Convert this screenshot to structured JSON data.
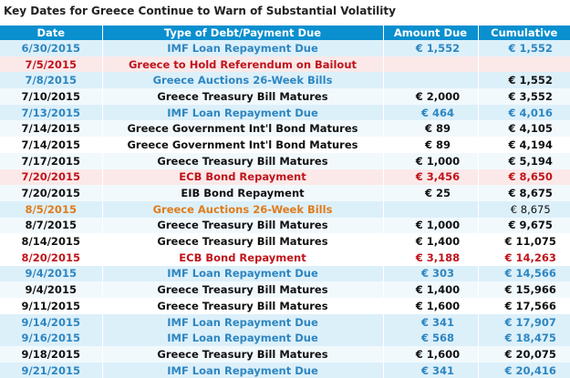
{
  "title": "Key Dates for Greece Continue to Warn of Substantial Volatility",
  "headers": {
    "date": "Date",
    "type": "Type of Debt/Payment Due",
    "amount": "Amount Due",
    "cumulative": "Cumulative"
  },
  "colors": {
    "header_bg": "#0a8fcf",
    "imf_blue": "#2e86c1",
    "ecb_red": "#c0141c",
    "auction_orange": "#e07b1a",
    "row_shade_blue": "#dcf0fa",
    "row_shade_red": "#fbe9e9"
  },
  "rows": [
    {
      "date": "6/30/2015",
      "type": "IMF Loan Repayment Due",
      "amount": "€ 1,552",
      "cumulative": "€ 1,552",
      "style": "imf"
    },
    {
      "date": "7/5/2015",
      "type": "Greece to Hold Referendum on Bailout",
      "amount": "",
      "cumulative": "",
      "style": "refer"
    },
    {
      "date": "7/8/2015",
      "type": "Greece Auctions 26-Week Bills",
      "amount": "",
      "cumulative": "€ 1,552",
      "style": "auction"
    },
    {
      "date": "7/10/2015",
      "type": "Greece Treasury Bill Matures",
      "amount": "€ 2,000",
      "cumulative": "€ 3,552",
      "style": "plain"
    },
    {
      "date": "7/13/2015",
      "type": "IMF Loan Repayment Due",
      "amount": "€ 464",
      "cumulative": "€ 4,016",
      "style": "imf"
    },
    {
      "date": "7/14/2015",
      "type": "Greece Government Int'l Bond Matures",
      "amount": "€ 89",
      "cumulative": "€ 4,105",
      "style": "plain"
    },
    {
      "date": "7/14/2015",
      "type": "Greece Government Int'l Bond Matures",
      "amount": "€ 89",
      "cumulative": "€ 4,194",
      "style": "plain"
    },
    {
      "date": "7/17/2015",
      "type": "Greece Treasury Bill Matures",
      "amount": "€ 1,000",
      "cumulative": "€ 5,194",
      "style": "plain"
    },
    {
      "date": "7/20/2015",
      "type": "ECB Bond Repayment",
      "amount": "€ 3,456",
      "cumulative": "€ 8,650",
      "style": "ecb"
    },
    {
      "date": "7/20/2015",
      "type": "EIB Bond Repayment",
      "amount": "€ 25",
      "cumulative": "€ 8,675",
      "style": "plain"
    },
    {
      "date": "8/5/2015",
      "type": "Greece Auctions 26-Week Bills",
      "amount": "",
      "cumulative": "€ 8,675",
      "style": "orange"
    },
    {
      "date": "8/7/2015",
      "type": "Greece Treasury Bill Matures",
      "amount": "€ 1,000",
      "cumulative": "€ 9,675",
      "style": "plain"
    },
    {
      "date": "8/14/2015",
      "type": "Greece Treasury Bill Matures",
      "amount": "€ 1,400",
      "cumulative": "€ 11,075",
      "style": "plain"
    },
    {
      "date": "8/20/2015",
      "type": "ECB Bond Repayment",
      "amount": "€ 3,188",
      "cumulative": "€ 14,263",
      "style": "ecb"
    },
    {
      "date": "9/4/2015",
      "type": "IMF Loan Repayment Due",
      "amount": "€ 303",
      "cumulative": "€ 14,566",
      "style": "imf"
    },
    {
      "date": "9/4/2015",
      "type": "Greece Treasury Bill Matures",
      "amount": "€ 1,400",
      "cumulative": "€ 15,966",
      "style": "plain"
    },
    {
      "date": "9/11/2015",
      "type": "Greece Treasury Bill Matures",
      "amount": "€ 1,600",
      "cumulative": "€ 17,566",
      "style": "plain"
    },
    {
      "date": "9/14/2015",
      "type": "IMF Loan Repayment Due",
      "amount": "€ 341",
      "cumulative": "€ 17,907",
      "style": "imf"
    },
    {
      "date": "9/16/2015",
      "type": "IMF Loan Repayment Due",
      "amount": "€ 568",
      "cumulative": "€ 18,475",
      "style": "imf"
    },
    {
      "date": "9/18/2015",
      "type": "Greece Treasury Bill Matures",
      "amount": "€ 1,600",
      "cumulative": "€ 20,075",
      "style": "plain"
    },
    {
      "date": "9/21/2015",
      "type": "IMF Loan Repayment Due",
      "amount": "€ 341",
      "cumulative": "€ 20,416",
      "style": "imf"
    }
  ]
}
